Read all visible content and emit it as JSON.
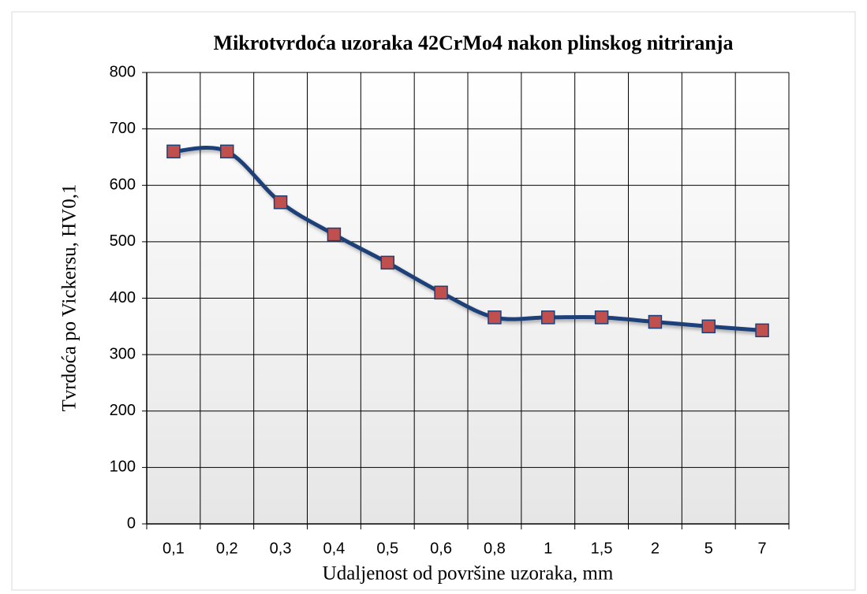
{
  "chart_data": {
    "type": "line",
    "title": "Mikrotvrdoća uzoraka 42CrMo4 nakon plinskog nitriranja",
    "x_label": "Udaljenost od površine uzoraka, mm",
    "y_label": "Tvrdoća po Vickersu, HV0,1",
    "categories": [
      "0,1",
      "0,2",
      "0,3",
      "0,4",
      "0,5",
      "0,6",
      "0,8",
      "1",
      "1,5",
      "2",
      "5",
      "7"
    ],
    "values": [
      660,
      660,
      570,
      513,
      463,
      410,
      366,
      366,
      366,
      358,
      350,
      343
    ],
    "color": "#1f3f77",
    "marker_color": "#c0504d",
    "ylim": [
      0,
      800
    ],
    "yticks": [
      0,
      100,
      200,
      300,
      400,
      500,
      600,
      700,
      800
    ],
    "grid": true,
    "smooth": true
  }
}
